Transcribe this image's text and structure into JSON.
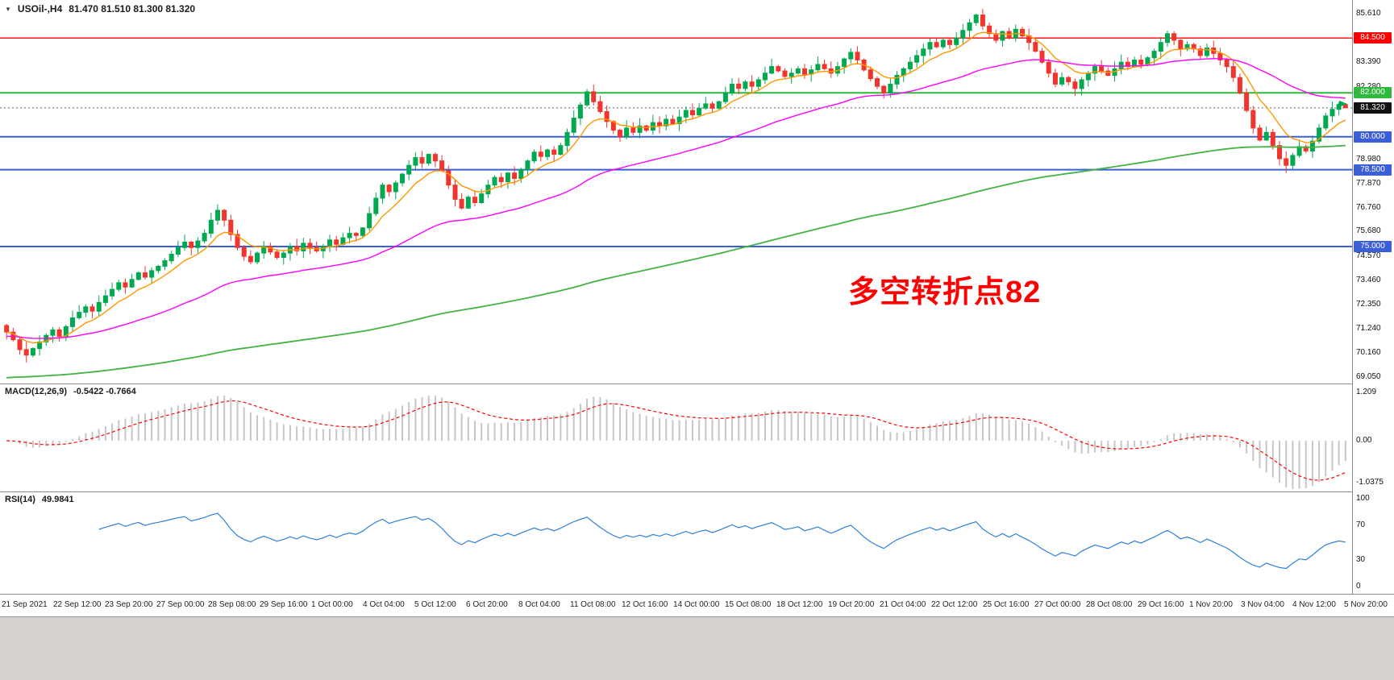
{
  "chart_data": [
    {
      "type": "candlestick",
      "symbol": "USOil-",
      "timeframe": "H4",
      "header_text": "USOil-,H4",
      "ohlc_text": "81.470 81.510 81.300 81.320",
      "last_ohlc": {
        "open": 81.47,
        "high": 81.51,
        "low": 81.3,
        "close": 81.32
      },
      "current_price": 81.32,
      "ylim": [
        69.05,
        85.61
      ],
      "colors": {
        "up": "#00a94f",
        "down": "#f1342c"
      },
      "annotation": {
        "text": "多空转折点82",
        "color": "#ff0000"
      },
      "moving_averages": [
        {
          "name": "ma-fast",
          "color": "#ff9800"
        },
        {
          "name": "ma-mid",
          "color": "#ff00ff"
        },
        {
          "name": "ma-slow",
          "color": "#44b244"
        }
      ],
      "hlines": [
        {
          "price": 84.5,
          "color": "#ff0000",
          "width": 1.4
        },
        {
          "price": 82.0,
          "color": "#2eb93c",
          "width": 2
        },
        {
          "price": 80.0,
          "color": "#3b5fd9",
          "width": 2
        },
        {
          "price": 78.5,
          "color": "#3b5fd9",
          "width": 2
        },
        {
          "price": 75.0,
          "color": "#3b5fd9",
          "width": 2
        }
      ],
      "y_ticks": [
        {
          "label": "85.610",
          "price": 85.61
        },
        {
          "label": "83.390",
          "price": 83.39
        },
        {
          "label": "82.280",
          "price": 82.28
        },
        {
          "label": "78.980",
          "price": 78.98
        },
        {
          "label": "77.870",
          "price": 77.87
        },
        {
          "label": "76.760",
          "price": 76.76
        },
        {
          "label": "75.680",
          "price": 75.68
        },
        {
          "label": "74.570",
          "price": 74.57
        },
        {
          "label": "73.460",
          "price": 73.46
        },
        {
          "label": "72.350",
          "price": 72.35
        },
        {
          "label": "71.240",
          "price": 71.24
        },
        {
          "label": "70.160",
          "price": 70.16
        },
        {
          "label": "69.050",
          "price": 69.05
        }
      ],
      "badges": [
        {
          "label": "84.500",
          "price": 84.5,
          "color": "#ff0000",
          "text": "#ffffff"
        },
        {
          "label": "82.000",
          "price": 82.0,
          "color": "#2eb93c",
          "text": "#ffffff"
        },
        {
          "label": "81.320",
          "price": 81.32,
          "color": "#111111",
          "text": "#ffffff"
        },
        {
          "label": "80.000",
          "price": 80.0,
          "color": "#3b5fd9",
          "text": "#ffffff"
        },
        {
          "label": "78.500",
          "price": 78.5,
          "color": "#3b5fd9",
          "text": "#ffffff"
        },
        {
          "label": "75.000",
          "price": 75.0,
          "color": "#3b5fd9",
          "text": "#ffffff"
        }
      ],
      "x_labels": [
        "21 Sep 2021",
        "22 Sep 12:00",
        "23 Sep 20:00",
        "27 Sep 00:00",
        "28 Sep 08:00",
        "29 Sep 16:00",
        "1 Oct 00:00",
        "4 Oct 04:00",
        "5 Oct 12:00",
        "6 Oct 20:00",
        "8 Oct 04:00",
        "11 Oct 08:00",
        "12 Oct 16:00",
        "14 Oct 00:00",
        "15 Oct 08:00",
        "18 Oct 12:00",
        "19 Oct 20:00",
        "21 Oct 04:00",
        "22 Oct 12:00",
        "25 Oct 16:00",
        "27 Oct 00:00",
        "28 Oct 08:00",
        "29 Oct 16:00",
        "1 Nov 20:00",
        "3 Nov 04:00",
        "4 Nov 12:00",
        "5 Nov 20:00"
      ],
      "closes": [
        71.1,
        70.75,
        70.3,
        70.05,
        70.35,
        70.65,
        70.95,
        71.2,
        70.9,
        71.35,
        71.75,
        72.0,
        72.25,
        72.05,
        72.45,
        72.75,
        73.05,
        73.35,
        73.15,
        73.5,
        73.8,
        73.6,
        73.9,
        74.1,
        74.35,
        74.65,
        74.95,
        75.2,
        74.95,
        75.25,
        75.6,
        76.2,
        76.65,
        76.2,
        75.55,
        74.95,
        74.55,
        74.3,
        74.7,
        75.0,
        74.75,
        74.5,
        74.7,
        75.0,
        74.8,
        75.15,
        74.95,
        74.8,
        75.0,
        75.3,
        75.1,
        75.4,
        75.6,
        75.5,
        75.85,
        76.5,
        77.2,
        77.8,
        77.5,
        77.9,
        78.3,
        78.7,
        79.05,
        78.8,
        79.2,
        78.9,
        78.45,
        77.8,
        77.15,
        76.75,
        77.25,
        77.0,
        77.4,
        77.8,
        78.15,
        77.95,
        78.35,
        78.1,
        78.5,
        78.9,
        79.3,
        79.1,
        79.4,
        79.2,
        79.6,
        80.2,
        80.85,
        81.45,
        82.05,
        81.6,
        81.15,
        80.7,
        80.3,
        80.0,
        80.4,
        80.2,
        80.5,
        80.3,
        80.65,
        80.5,
        80.8,
        80.6,
        80.9,
        81.2,
        81.0,
        81.3,
        81.5,
        81.3,
        81.6,
        82.0,
        82.4,
        82.2,
        82.5,
        82.3,
        82.6,
        82.9,
        83.2,
        83.0,
        82.75,
        82.9,
        83.1,
        82.85,
        83.05,
        83.3,
        83.1,
        82.9,
        83.2,
        83.55,
        83.85,
        83.5,
        83.05,
        82.65,
        82.3,
        82.0,
        82.4,
        82.8,
        83.1,
        83.4,
        83.7,
        84.0,
        84.3,
        84.1,
        84.4,
        84.2,
        84.5,
        84.85,
        85.2,
        85.55,
        85.05,
        84.7,
        84.4,
        84.8,
        84.5,
        84.9,
        84.6,
        84.3,
        83.9,
        83.4,
        82.9,
        82.4,
        82.7,
        82.5,
        82.2,
        82.6,
        82.9,
        83.2,
        83.0,
        82.8,
        83.1,
        83.4,
        83.2,
        83.5,
        83.3,
        83.6,
        83.9,
        84.3,
        84.7,
        84.4,
        84.0,
        84.2,
        84.0,
        83.7,
        84.05,
        83.8,
        83.5,
        83.2,
        82.7,
        82.0,
        81.2,
        80.4,
        79.85,
        80.2,
        79.6,
        79.0,
        78.7,
        79.15,
        79.55,
        79.35,
        79.8,
        80.4,
        80.95,
        81.25,
        81.47,
        81.32
      ]
    },
    {
      "type": "bar",
      "name": "MACD",
      "header_label": "MACD(12,26,9)",
      "header_values": "-0.5422 -0.7664",
      "params": [
        12,
        26,
        9
      ],
      "histogram_color": "#c6c6c6",
      "signal_color": "#ff0000",
      "y_ticks": [
        {
          "label": "1.209",
          "value": 1.209
        },
        {
          "label": "0.00",
          "value": 0
        },
        {
          "label": "-1.0375",
          "value": -1.0375
        }
      ]
    },
    {
      "type": "line",
      "name": "RSI",
      "header_label": "RSI(14)",
      "header_value": "49.9841",
      "period": 14,
      "line_color": "#2f81d6",
      "y_ticks": [
        {
          "label": "100",
          "value": 100
        },
        {
          "label": "70",
          "value": 70
        },
        {
          "label": "30",
          "value": 30
        },
        {
          "label": "0",
          "value": 0
        }
      ]
    }
  ]
}
